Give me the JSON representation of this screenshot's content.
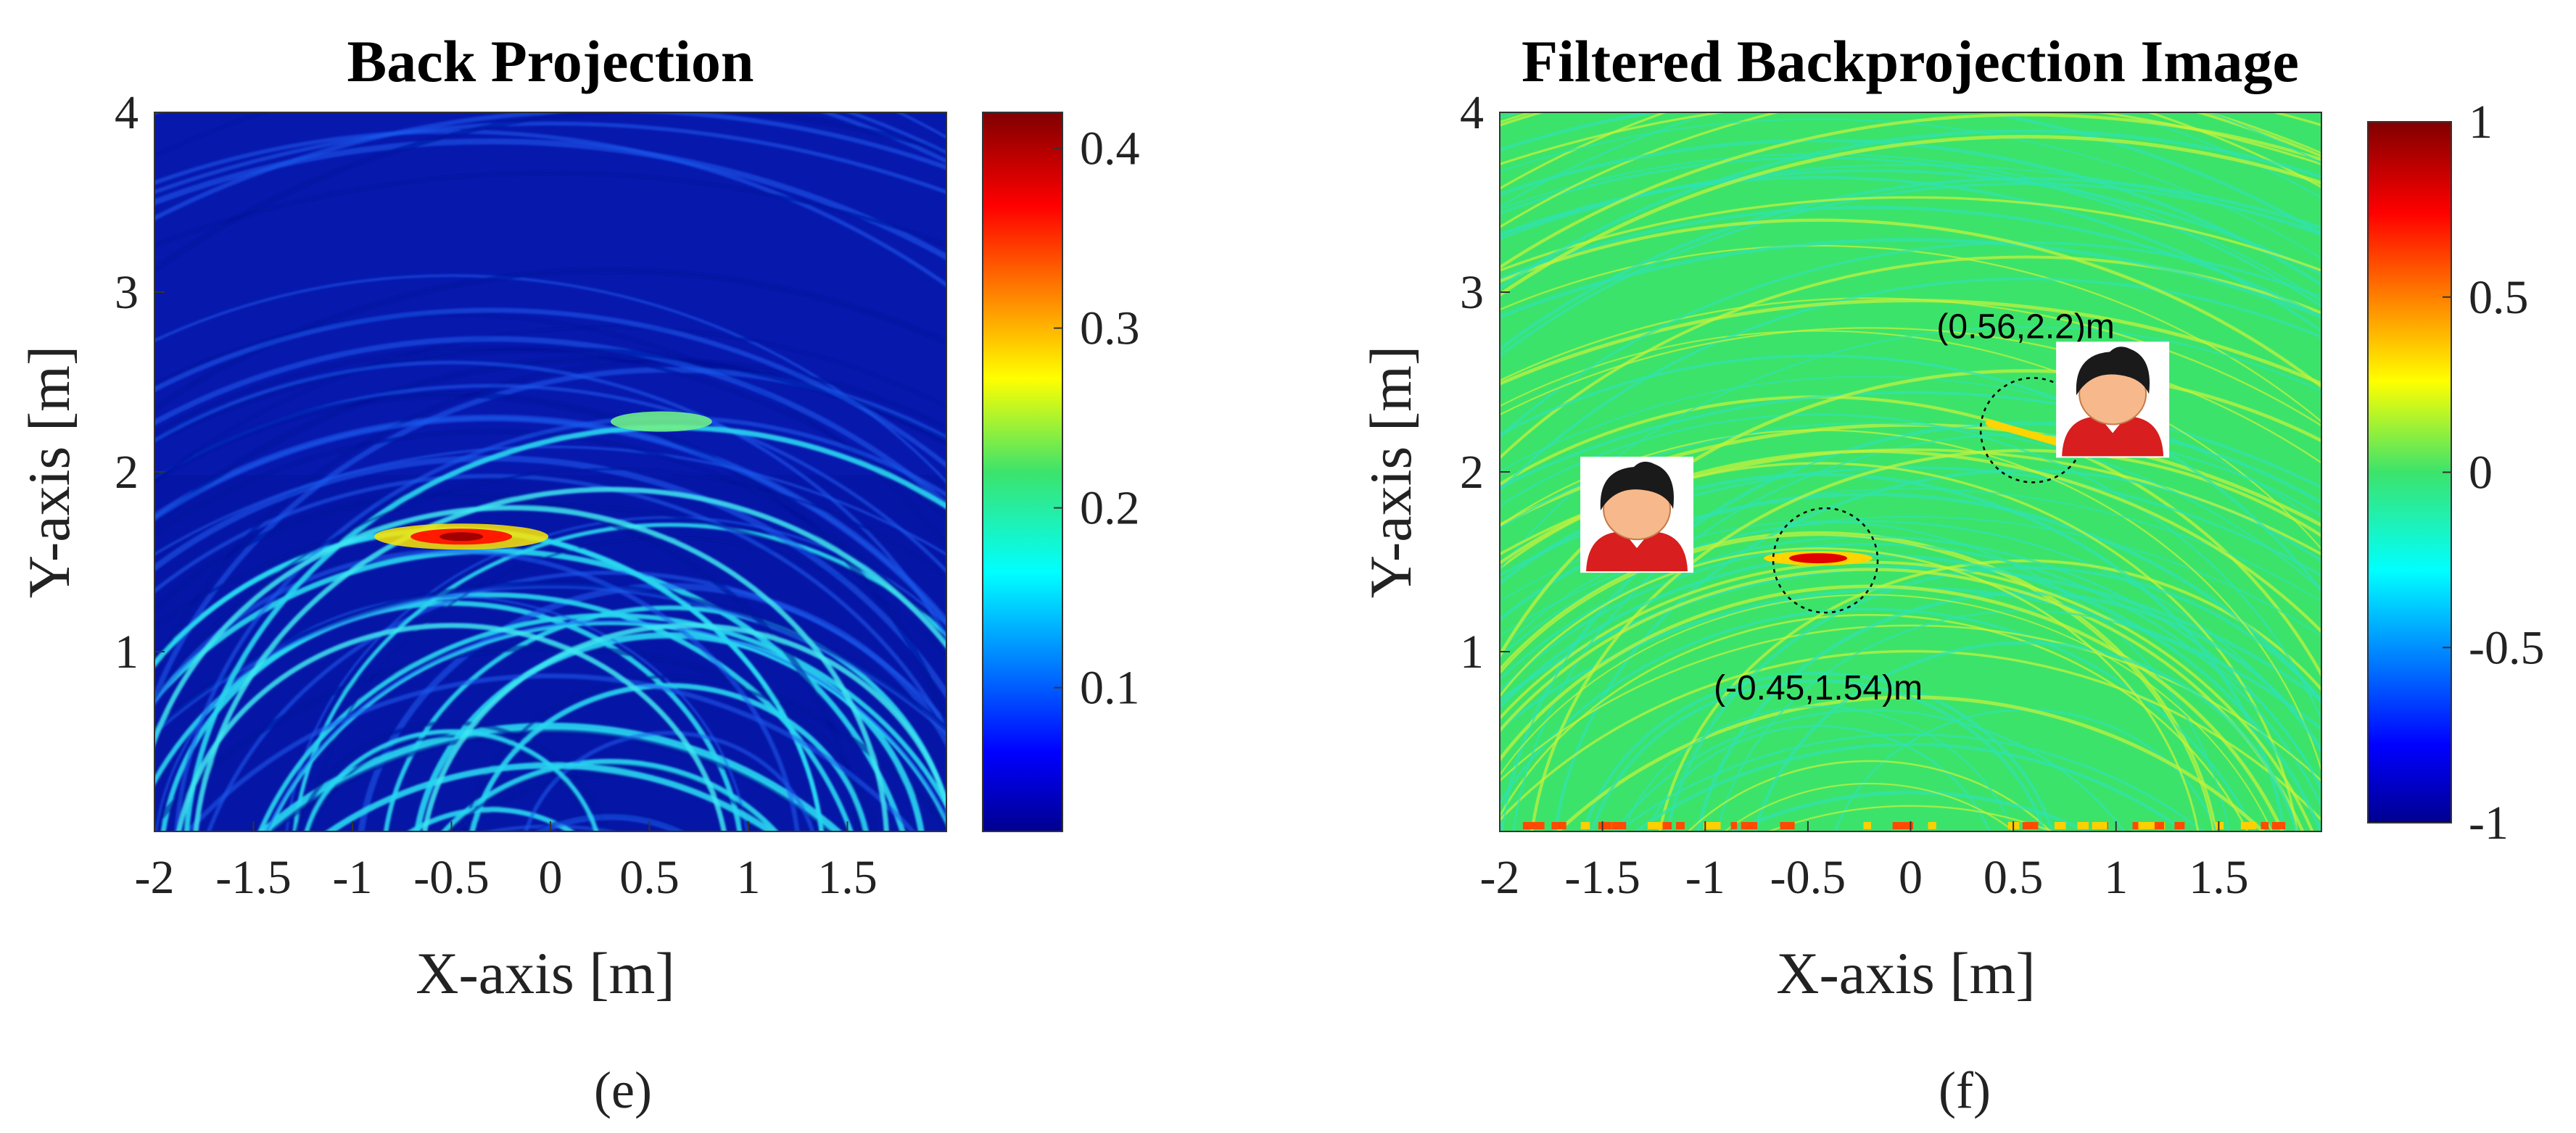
{
  "chart_data": [
    {
      "type": "heatmap",
      "title": "Back Projection",
      "xlabel": "X-axis [m]",
      "ylabel": "Y-axis [m]",
      "xlim": [
        -2,
        2
      ],
      "ylim": [
        0,
        4
      ],
      "xticks": [
        -2,
        -1.5,
        -1,
        -0.5,
        0,
        0.5,
        1,
        1.5
      ],
      "xtick_labels": [
        "-2",
        "-1.5",
        "-1",
        "-0.5",
        "0",
        "0.5",
        "1",
        "1.5"
      ],
      "yticks": [
        1,
        2,
        3,
        4
      ],
      "ytick_labels": [
        "1",
        "2",
        "3",
        "4"
      ],
      "colorbar": {
        "colormap": "jet",
        "range": [
          0.02,
          0.42
        ],
        "ticks": [
          0.1,
          0.2,
          0.3,
          0.4
        ],
        "tick_labels": [
          "0.1",
          "0.2",
          "0.3",
          "0.4"
        ]
      },
      "peaks": [
        {
          "x": -0.45,
          "y": 1.64,
          "value": 0.42
        },
        {
          "x": 0.56,
          "y": 2.28,
          "value": 0.24
        }
      ],
      "caption": "(e)"
    },
    {
      "type": "heatmap",
      "title": "Filtered Backprojection Image",
      "xlabel": "X-axis [m]",
      "ylabel": "Y-axis [m]",
      "xlim": [
        -2,
        2
      ],
      "ylim": [
        0,
        4
      ],
      "xticks": [
        -2,
        -1.5,
        -1,
        -0.5,
        0,
        0.5,
        1,
        1.5
      ],
      "xtick_labels": [
        "-2",
        "-1.5",
        "-1",
        "-0.5",
        "0",
        "0.5",
        "1",
        "1.5"
      ],
      "yticks": [
        1,
        2,
        3,
        4
      ],
      "ytick_labels": [
        "1",
        "2",
        "3",
        "4"
      ],
      "colorbar": {
        "colormap": "jet",
        "range": [
          -1,
          1
        ],
        "ticks": [
          -1,
          -0.5,
          0,
          0.5,
          1
        ],
        "tick_labels": [
          "-1",
          "-0.5",
          "0",
          "0.5",
          "1"
        ]
      },
      "targets": [
        {
          "x": -0.45,
          "y": 1.54,
          "label": "(-0.45,1.54)m",
          "icon": "person-icon"
        },
        {
          "x": 0.56,
          "y": 2.2,
          "label": "(0.56,2.2)m",
          "icon": "person-icon"
        }
      ],
      "caption": "(f)"
    }
  ],
  "colors": {
    "jet_dark_blue": "#00008f",
    "jet_blue": "#0000ff",
    "jet_cyan": "#00ffff",
    "jet_green": "#3ce36b",
    "jet_yellow": "#ffff00",
    "jet_red": "#ff0000",
    "jet_dark_red": "#800000",
    "person_hair": "#1a1a1a",
    "person_skin": "#f7b98b",
    "person_shirt": "#d81e1e"
  }
}
